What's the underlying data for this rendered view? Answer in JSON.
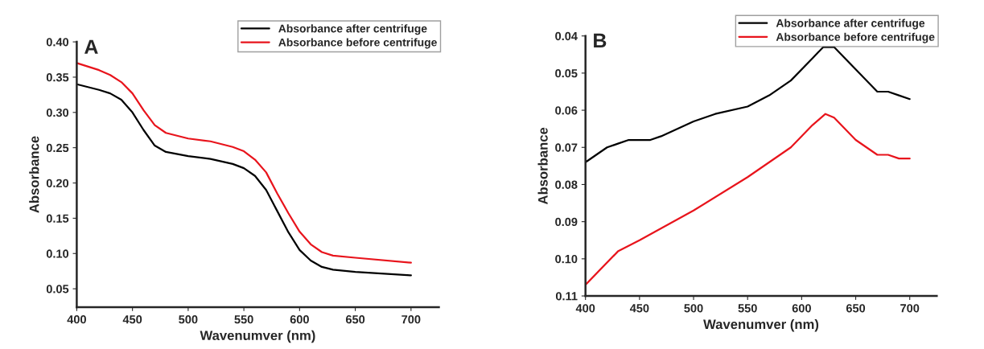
{
  "chart_data": [
    {
      "type": "line",
      "title": "A",
      "xlabel": "Wavenumver (nm)",
      "ylabel": "Absorbance",
      "xlim": [
        400,
        725
      ],
      "xticks": [
        400,
        450,
        500,
        550,
        600,
        650,
        700
      ],
      "ylim": [
        0.024,
        0.4
      ],
      "yticks": [
        {
          "value": 0.05,
          "label": "0.05"
        },
        {
          "value": 0.1,
          "label": "0.10"
        },
        {
          "value": 0.15,
          "label": "0.15"
        },
        {
          "value": 0.2,
          "label": "0.20"
        },
        {
          "value": 0.25,
          "label": "0.25"
        },
        {
          "value": 0.3,
          "label": "0.30"
        },
        {
          "value": 0.35,
          "label": "0.35"
        },
        {
          "value": 0.4,
          "label": "0.40"
        }
      ],
      "legend": "top right",
      "grid": false,
      "series": [
        {
          "name": "Absorbance after centrifuge",
          "color": "#000000",
          "x": [
            400,
            420,
            430,
            440,
            450,
            460,
            470,
            480,
            500,
            520,
            540,
            550,
            560,
            570,
            580,
            590,
            600,
            610,
            620,
            630,
            650,
            700
          ],
          "values": [
            0.34,
            0.332,
            0.327,
            0.318,
            0.3,
            0.275,
            0.253,
            0.244,
            0.238,
            0.234,
            0.227,
            0.221,
            0.21,
            0.19,
            0.16,
            0.13,
            0.105,
            0.09,
            0.081,
            0.077,
            0.074,
            0.069
          ]
        },
        {
          "name": "Absorbance before centrifuge",
          "color": "#e8141c",
          "x": [
            400,
            420,
            430,
            440,
            450,
            460,
            470,
            480,
            500,
            520,
            540,
            550,
            560,
            570,
            580,
            590,
            600,
            610,
            620,
            630,
            650,
            700
          ],
          "values": [
            0.37,
            0.36,
            0.353,
            0.343,
            0.327,
            0.303,
            0.282,
            0.271,
            0.263,
            0.259,
            0.251,
            0.245,
            0.233,
            0.215,
            0.185,
            0.157,
            0.131,
            0.113,
            0.102,
            0.097,
            0.094,
            0.087
          ]
        }
      ]
    },
    {
      "type": "line",
      "title": "B",
      "xlabel": "Wavenumver (nm)",
      "ylabel": "Absorbance",
      "xlim": [
        400,
        725
      ],
      "xticks": [
        400,
        450,
        500,
        550,
        600,
        650,
        700
      ],
      "ylim": [
        0.11,
        0.04
      ],
      "yticks": [
        {
          "value": 0.04,
          "label": "0.04"
        },
        {
          "value": 0.05,
          "label": "0.05"
        },
        {
          "value": 0.06,
          "label": "0.06"
        },
        {
          "value": 0.07,
          "label": "0.07"
        },
        {
          "value": 0.08,
          "label": "0.08"
        },
        {
          "value": 0.09,
          "label": "0.09"
        },
        {
          "value": 0.1,
          "label": "0.10"
        },
        {
          "value": 0.11,
          "label": "0.11"
        }
      ],
      "legend": "top right",
      "grid": false,
      "series": [
        {
          "name": "Absorbance after centrifuge",
          "color": "#000000",
          "x": [
            400,
            420,
            430,
            440,
            460,
            470,
            500,
            520,
            550,
            570,
            590,
            610,
            620,
            630,
            650,
            670,
            680,
            690,
            700
          ],
          "values": [
            0.074,
            0.07,
            0.069,
            0.068,
            0.068,
            0.067,
            0.063,
            0.061,
            0.059,
            0.056,
            0.052,
            0.046,
            0.043,
            0.043,
            0.049,
            0.055,
            0.055,
            0.056,
            0.057
          ]
        },
        {
          "name": "Absorbance before centrifuge",
          "color": "#e8141c",
          "x": [
            400,
            430,
            450,
            500,
            550,
            590,
            610,
            622,
            630,
            650,
            670,
            680,
            690,
            700
          ],
          "values": [
            0.107,
            0.098,
            0.095,
            0.087,
            0.078,
            0.07,
            0.064,
            0.061,
            0.062,
            0.068,
            0.072,
            0.072,
            0.073,
            0.073
          ]
        }
      ]
    }
  ]
}
